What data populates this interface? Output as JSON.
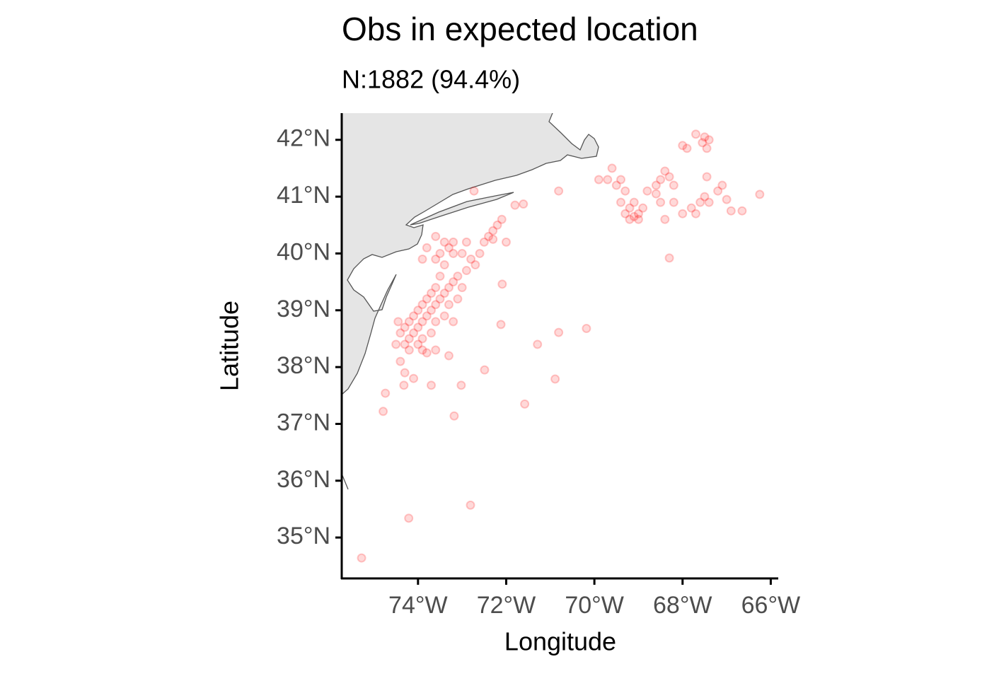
{
  "chart_data": {
    "type": "scatter",
    "title": "Obs in expected location",
    "subtitle": "N:1882 (94.4%)",
    "x_label": "Longitude",
    "y_label": "Latitude",
    "color": "#ff0000",
    "xlim": [
      -75.73,
      -65.83
    ],
    "ylim": [
      34.28,
      42.47
    ],
    "xticks": [
      {
        "value": -74,
        "label": "74°W"
      },
      {
        "value": -72,
        "label": "72°W"
      },
      {
        "value": -70,
        "label": "70°W"
      },
      {
        "value": -68,
        "label": "68°W"
      },
      {
        "value": -66,
        "label": "66°W"
      }
    ],
    "yticks": [
      {
        "value": 35,
        "label": "35°N"
      },
      {
        "value": 36,
        "label": "36°N"
      },
      {
        "value": 37,
        "label": "37°N"
      },
      {
        "value": 38,
        "label": "38°N"
      },
      {
        "value": 39,
        "label": "39°N"
      },
      {
        "value": 40,
        "label": "40°N"
      },
      {
        "value": 41,
        "label": "41°N"
      },
      {
        "value": 42,
        "label": "42°N"
      }
    ],
    "x": [
      -74.3,
      -74.2,
      -74.1,
      -74.0,
      -73.9,
      -73.8,
      -73.7,
      -73.6,
      -73.5,
      -73.4,
      -73.3,
      -73.2,
      -73.1,
      -74.4,
      -74.3,
      -74.2,
      -74.1,
      -74.0,
      -73.9,
      -73.8,
      -73.7,
      -73.6,
      -73.5,
      -73.4,
      -73.5,
      -73.3,
      -73.4,
      -73.2,
      -73.6,
      -74.2,
      -74.0,
      -73.9,
      -73.7,
      -73.6,
      -73.4,
      -73.3,
      -73.1,
      -73.0,
      -72.9,
      -72.8,
      -72.7,
      -72.6,
      -72.5,
      -72.4,
      -72.3,
      -72.2,
      -72.1,
      -72.3,
      -73.0,
      -72.9,
      -74.4,
      -74.3,
      -74.1,
      -73.9,
      -73.8,
      -73.6,
      -73.3,
      -73.2,
      -73.6,
      -73.8,
      -73.9,
      -74.5,
      -74.45,
      -73.2,
      -72.0,
      -71.8,
      -75.28,
      -74.21,
      -72.81,
      -74.79,
      -74.74,
      -73.18,
      -71.58,
      -70.89,
      -71.29,
      -70.81,
      -70.18,
      -72.12,
      -72.49,
      -72.09,
      -71.61,
      -70.81,
      -72.73,
      -73.7,
      -73.02,
      -74.32,
      -69.3,
      -69.2,
      -69.1,
      -69.0,
      -69.2,
      -69.4,
      -69.3,
      -69.5,
      -69.4,
      -69.0,
      -68.9,
      -69.1,
      -68.8,
      -68.6,
      -68.5,
      -68.4,
      -68.6,
      -68.3,
      -68.2,
      -69.6,
      -69.7,
      -69.9,
      -68.4,
      -68.5,
      -68.2,
      -68.0,
      -67.8,
      -67.6,
      -67.5,
      -67.7,
      -67.4,
      -67.2,
      -67.1,
      -67.0,
      -66.9,
      -66.65,
      -66.25,
      -67.45,
      -67.5,
      -67.4,
      -67.55,
      -67.45,
      -67.7,
      -67.9,
      -68.0,
      -68.3
    ],
    "values": [
      38.4,
      38.5,
      38.6,
      38.7,
      38.8,
      38.9,
      39.0,
      39.1,
      39.2,
      39.3,
      39.4,
      39.5,
      39.6,
      38.6,
      38.7,
      38.8,
      38.9,
      39.0,
      39.1,
      39.2,
      39.3,
      39.4,
      39.6,
      39.8,
      40.0,
      40.1,
      40.2,
      40.0,
      39.9,
      38.3,
      38.4,
      38.5,
      38.6,
      38.8,
      38.9,
      39.1,
      39.2,
      39.4,
      39.7,
      39.9,
      39.8,
      40.0,
      40.2,
      40.3,
      40.4,
      40.5,
      40.6,
      40.25,
      40.0,
      40.2,
      38.1,
      37.9,
      37.8,
      38.3,
      38.25,
      38.3,
      38.2,
      38.8,
      40.3,
      40.1,
      39.9,
      38.4,
      38.8,
      40.2,
      40.2,
      40.85,
      34.64,
      35.34,
      35.57,
      37.22,
      37.54,
      37.14,
      37.35,
      37.79,
      38.4,
      38.61,
      38.68,
      38.75,
      37.95,
      39.46,
      40.87,
      41.1,
      41.1,
      37.68,
      37.68,
      37.68,
      40.7,
      40.8,
      40.9,
      40.7,
      40.6,
      40.9,
      41.1,
      41.2,
      41.3,
      40.6,
      40.8,
      40.65,
      41.1,
      41.2,
      41.3,
      41.45,
      41.05,
      41.35,
      41.2,
      41.5,
      41.3,
      41.3,
      40.6,
      40.9,
      40.9,
      40.7,
      40.8,
      40.9,
      41.0,
      40.7,
      40.9,
      41.1,
      41.2,
      40.95,
      40.75,
      40.75,
      41.04,
      41.35,
      42.05,
      42.0,
      41.95,
      41.85,
      42.1,
      41.85,
      41.9,
      39.92
    ]
  }
}
